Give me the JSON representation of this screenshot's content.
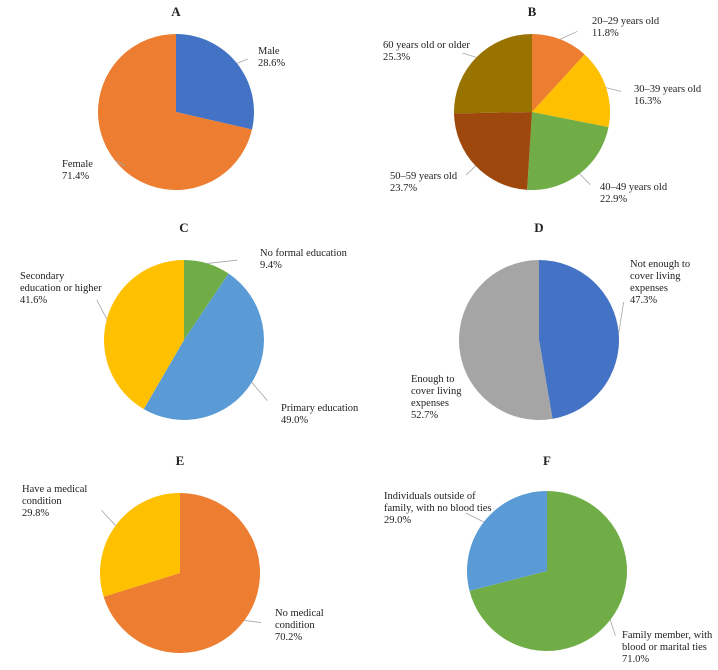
{
  "chart_data": [
    {
      "type": "pie",
      "title": "A",
      "slices": [
        {
          "label": [
            "Male"
          ],
          "value": 28.6,
          "percent": "28.6%",
          "color": "#4472C4"
        },
        {
          "label": [
            "Female"
          ],
          "value": 71.4,
          "percent": "71.4%",
          "color": "#ED7D31"
        }
      ]
    },
    {
      "type": "pie",
      "title": "B",
      "slices": [
        {
          "label": [
            "20–29 years old"
          ],
          "value": 11.8,
          "percent": "11.8%",
          "color": "#ED7D31"
        },
        {
          "label": [
            "30–39 years old"
          ],
          "value": 16.3,
          "percent": "16.3%",
          "color": "#FFC000"
        },
        {
          "label": [
            "40–49 years old"
          ],
          "value": 22.9,
          "percent": "22.9%",
          "color": "#70AD47"
        },
        {
          "label": [
            "50–59 years old"
          ],
          "value": 23.7,
          "percent": "23.7%",
          "color": "#9E480E"
        },
        {
          "label": [
            "60 years old or older"
          ],
          "value": 25.3,
          "percent": "25.3%",
          "color": "#997300"
        }
      ]
    },
    {
      "type": "pie",
      "title": "C",
      "slices": [
        {
          "label": [
            "No formal education"
          ],
          "value": 9.4,
          "percent": "9.4%",
          "color": "#70AD47"
        },
        {
          "label": [
            "Primary education"
          ],
          "value": 49.0,
          "percent": "49.0%",
          "color": "#5B9BD5"
        },
        {
          "label": [
            "Secondary",
            "education or higher"
          ],
          "value": 41.6,
          "percent": "41.6%",
          "color": "#FFC000"
        }
      ]
    },
    {
      "type": "pie",
      "title": "D",
      "slices": [
        {
          "label": [
            "Not enough to",
            "cover living",
            "expenses"
          ],
          "value": 47.3,
          "percent": "47.3%",
          "color": "#4472C4"
        },
        {
          "label": [
            "Enough to",
            "cover living",
            "expenses"
          ],
          "value": 52.7,
          "percent": "52.7%",
          "color": "#A5A5A5"
        }
      ]
    },
    {
      "type": "pie",
      "title": "E",
      "slices": [
        {
          "label": [
            "No medical",
            "condition"
          ],
          "value": 70.2,
          "percent": "70.2%",
          "color": "#ED7D31"
        },
        {
          "label": [
            "Have a medical",
            "condition"
          ],
          "value": 29.8,
          "percent": "29.8%",
          "color": "#FFC000"
        }
      ]
    },
    {
      "type": "pie",
      "title": "F",
      "slices": [
        {
          "label": [
            "Family member, with",
            "blood or marital ties"
          ],
          "value": 71.0,
          "percent": "71.0%",
          "color": "#70AD47"
        },
        {
          "label": [
            "Individuals outside of",
            "family, with no blood ties"
          ],
          "value": 29.0,
          "percent": "29.0%",
          "color": "#5B9BD5"
        }
      ]
    }
  ]
}
